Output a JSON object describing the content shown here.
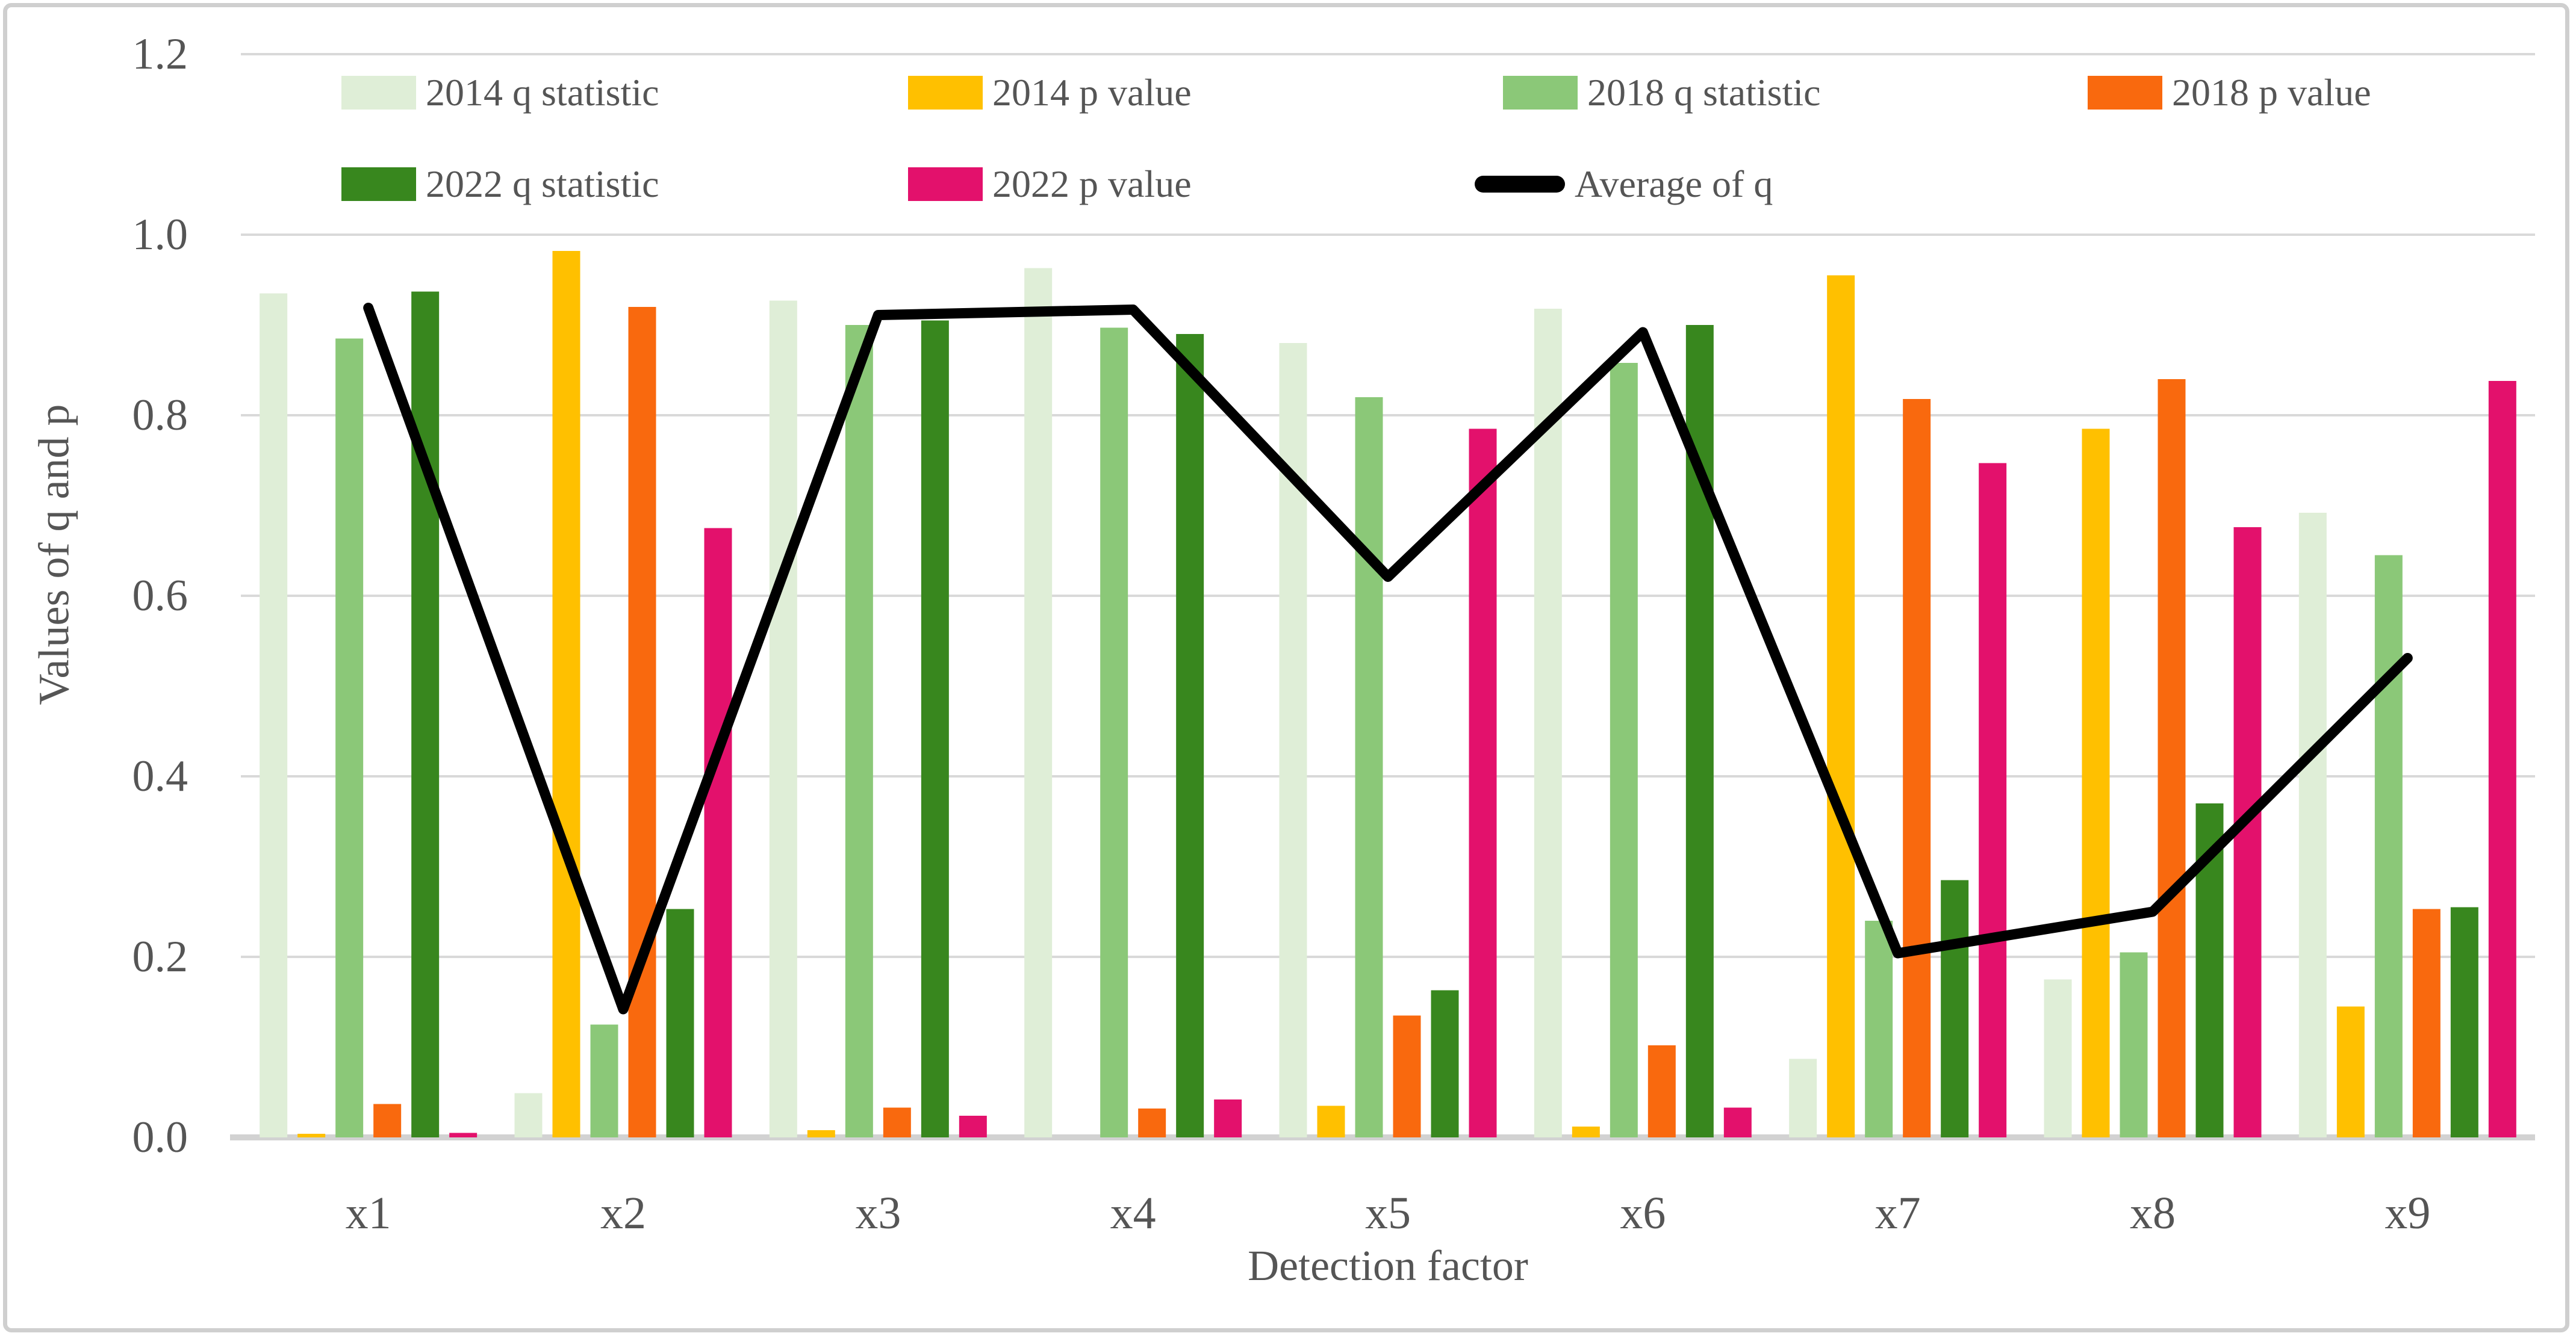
{
  "figure": {
    "background": "#ffffff",
    "border_color": "#cfcfcf"
  },
  "chart_data": {
    "type": "bar",
    "subtype": "grouped bars with line overlay",
    "categories": [
      "x1",
      "x2",
      "x3",
      "x4",
      "x5",
      "x6",
      "x7",
      "x8",
      "x9"
    ],
    "series": [
      {
        "name": "2014 q statistic",
        "kind": "bar",
        "color": "#dfeed7",
        "values": [
          0.935,
          0.049,
          0.927,
          0.963,
          0.88,
          0.918,
          0.087,
          0.175,
          0.692
        ]
      },
      {
        "name": "2014 p value",
        "kind": "bar",
        "color": "#ffc000",
        "values": [
          0.004,
          0.982,
          0.008,
          0.0,
          0.035,
          0.012,
          0.955,
          0.785,
          0.145
        ]
      },
      {
        "name": "2018 q statistic",
        "kind": "bar",
        "color": "#8bc878",
        "values": [
          0.885,
          0.125,
          0.9,
          0.897,
          0.82,
          0.858,
          0.24,
          0.205,
          0.645
        ]
      },
      {
        "name": "2018 p value",
        "kind": "bar",
        "color": "#f9690e",
        "values": [
          0.037,
          0.92,
          0.033,
          0.032,
          0.135,
          0.102,
          0.818,
          0.84,
          0.253
        ]
      },
      {
        "name": "2022 q statistic",
        "kind": "bar",
        "color": "#38871e",
        "values": [
          0.937,
          0.253,
          0.905,
          0.89,
          0.163,
          0.9,
          0.285,
          0.37,
          0.255
        ]
      },
      {
        "name": "2022 p value",
        "kind": "bar",
        "color": "#e3116c",
        "values": [
          0.005,
          0.675,
          0.024,
          0.042,
          0.785,
          0.033,
          0.747,
          0.676,
          0.838
        ]
      },
      {
        "name": "Average of q",
        "kind": "line",
        "color": "#000000",
        "values": [
          0.919,
          0.142,
          0.911,
          0.917,
          0.621,
          0.892,
          0.204,
          0.25,
          0.531
        ]
      }
    ],
    "xlabel": "Detection factor",
    "ylabel": "Values of q and p",
    "ylim": [
      0.0,
      1.2
    ],
    "ytick_labels": [
      "0.0",
      "0.2",
      "0.4",
      "0.6",
      "0.8",
      "1.0",
      "1.2"
    ],
    "grid": true,
    "gridline_color": "#d9d9d9",
    "axis_line_color": "#d2d2d2",
    "text_color": "#555555",
    "legend_position": "top"
  }
}
